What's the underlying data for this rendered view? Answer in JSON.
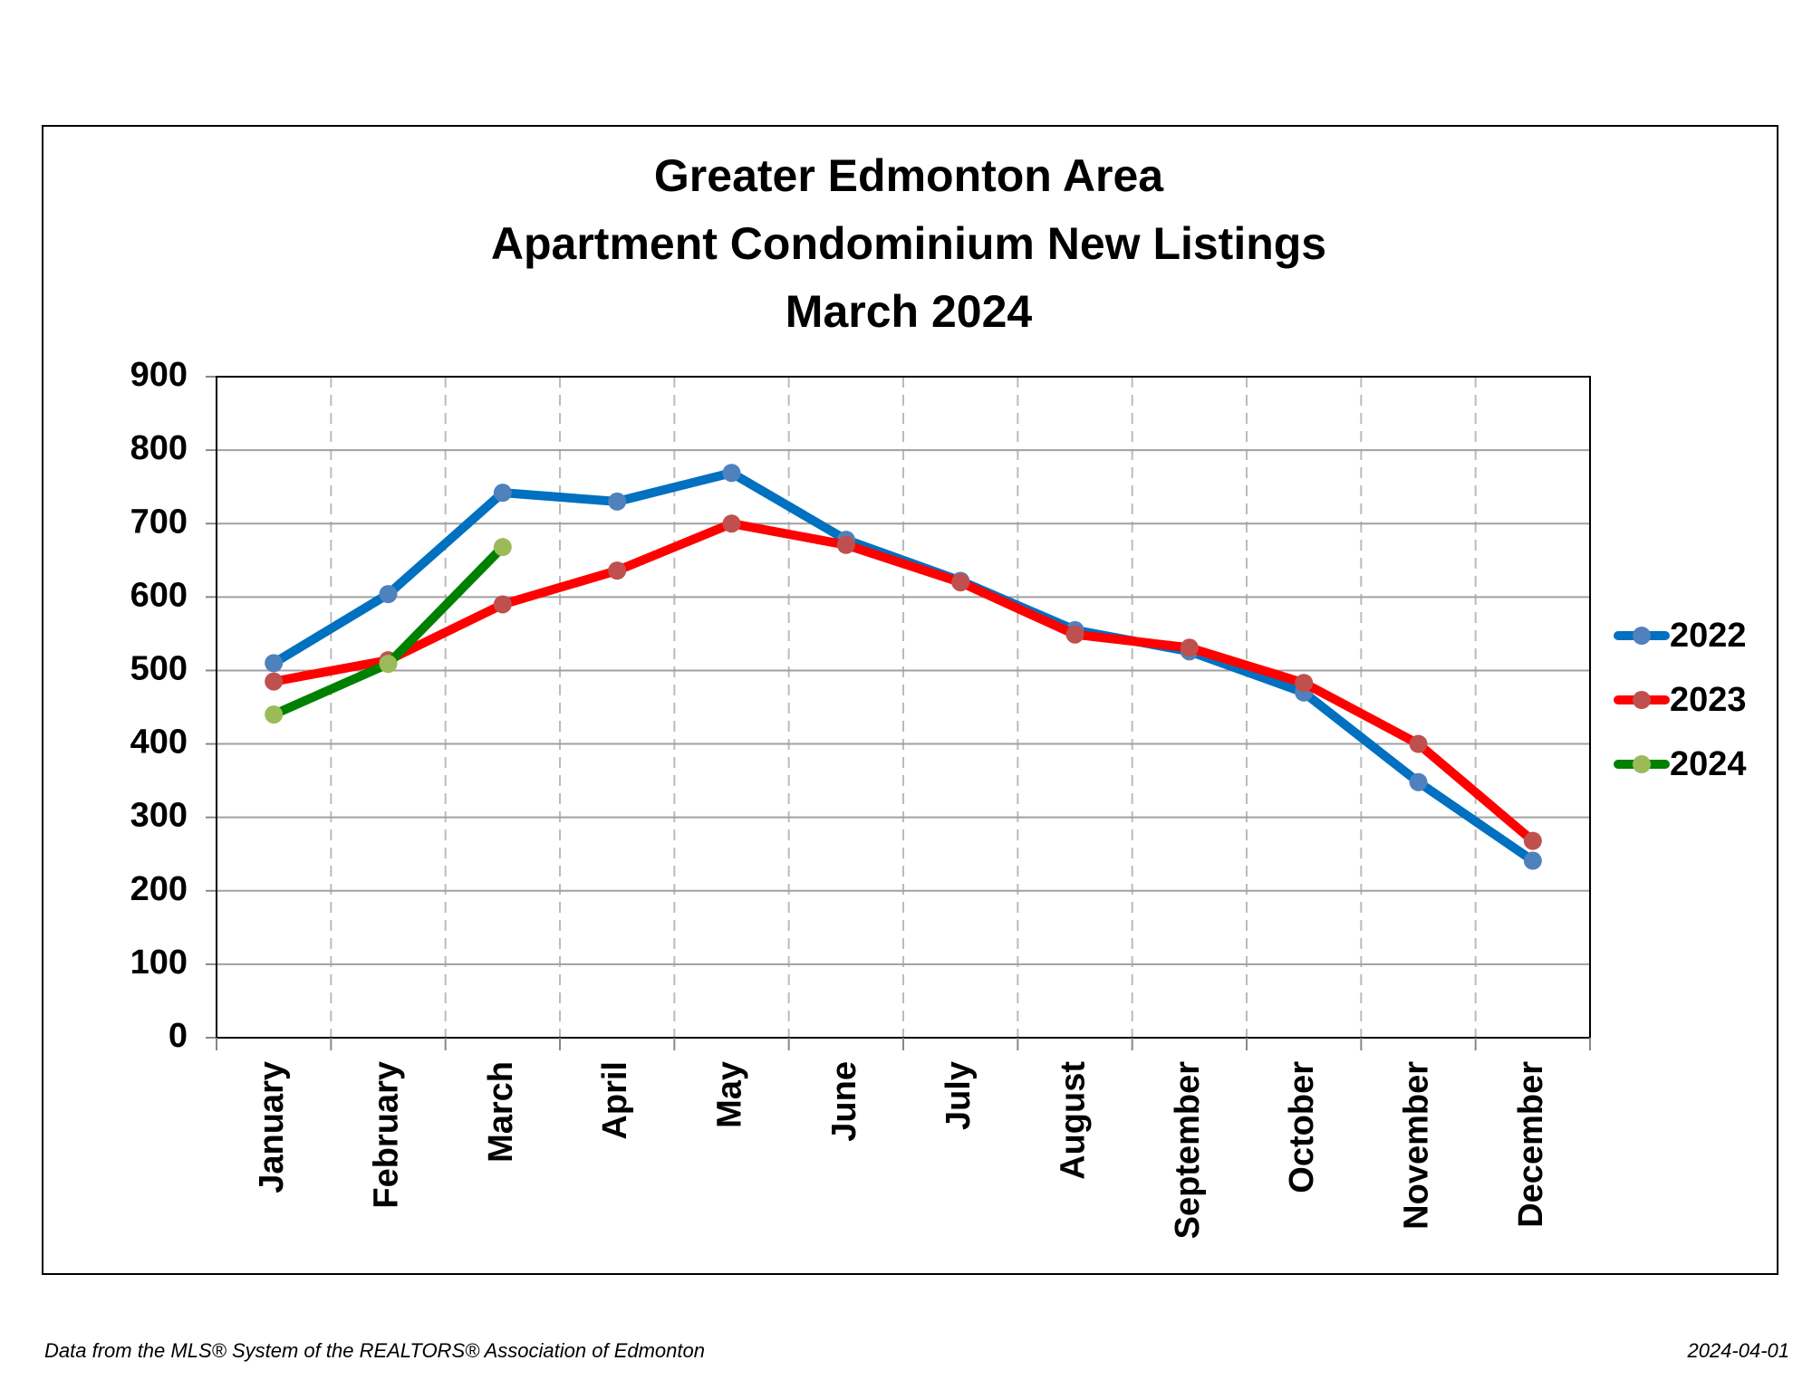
{
  "chart_data": {
    "type": "line",
    "title": [
      "Greater Edmonton Area",
      "Apartment Condominium New Listings",
      "March 2024"
    ],
    "categories": [
      "January",
      "February",
      "March",
      "April",
      "May",
      "June",
      "July",
      "August",
      "September",
      "October",
      "November",
      "December"
    ],
    "series": [
      {
        "name": "2022",
        "color": "#0070c0",
        "marker_color": "#4f81bd",
        "values": [
          510,
          604,
          742,
          730,
          769,
          678,
          622,
          555,
          526,
          470,
          348,
          241
        ]
      },
      {
        "name": "2023",
        "color": "#ff0000",
        "marker_color": "#c0504d",
        "values": [
          485,
          514,
          590,
          636,
          700,
          671,
          620,
          549,
          531,
          483,
          400,
          268
        ]
      },
      {
        "name": "2024",
        "color": "#008000",
        "marker_color": "#9bbb59",
        "values": [
          440,
          509,
          668,
          null,
          null,
          null,
          null,
          null,
          null,
          null,
          null,
          null
        ]
      }
    ],
    "ylim": [
      0,
      900
    ],
    "yticks": [
      0,
      100,
      200,
      300,
      400,
      500,
      600,
      700,
      800,
      900
    ],
    "grid": true,
    "legend": "right",
    "source": "Data from the MLS® System of the REALTORS® Association of Edmonton",
    "date": "2024-04-01"
  }
}
